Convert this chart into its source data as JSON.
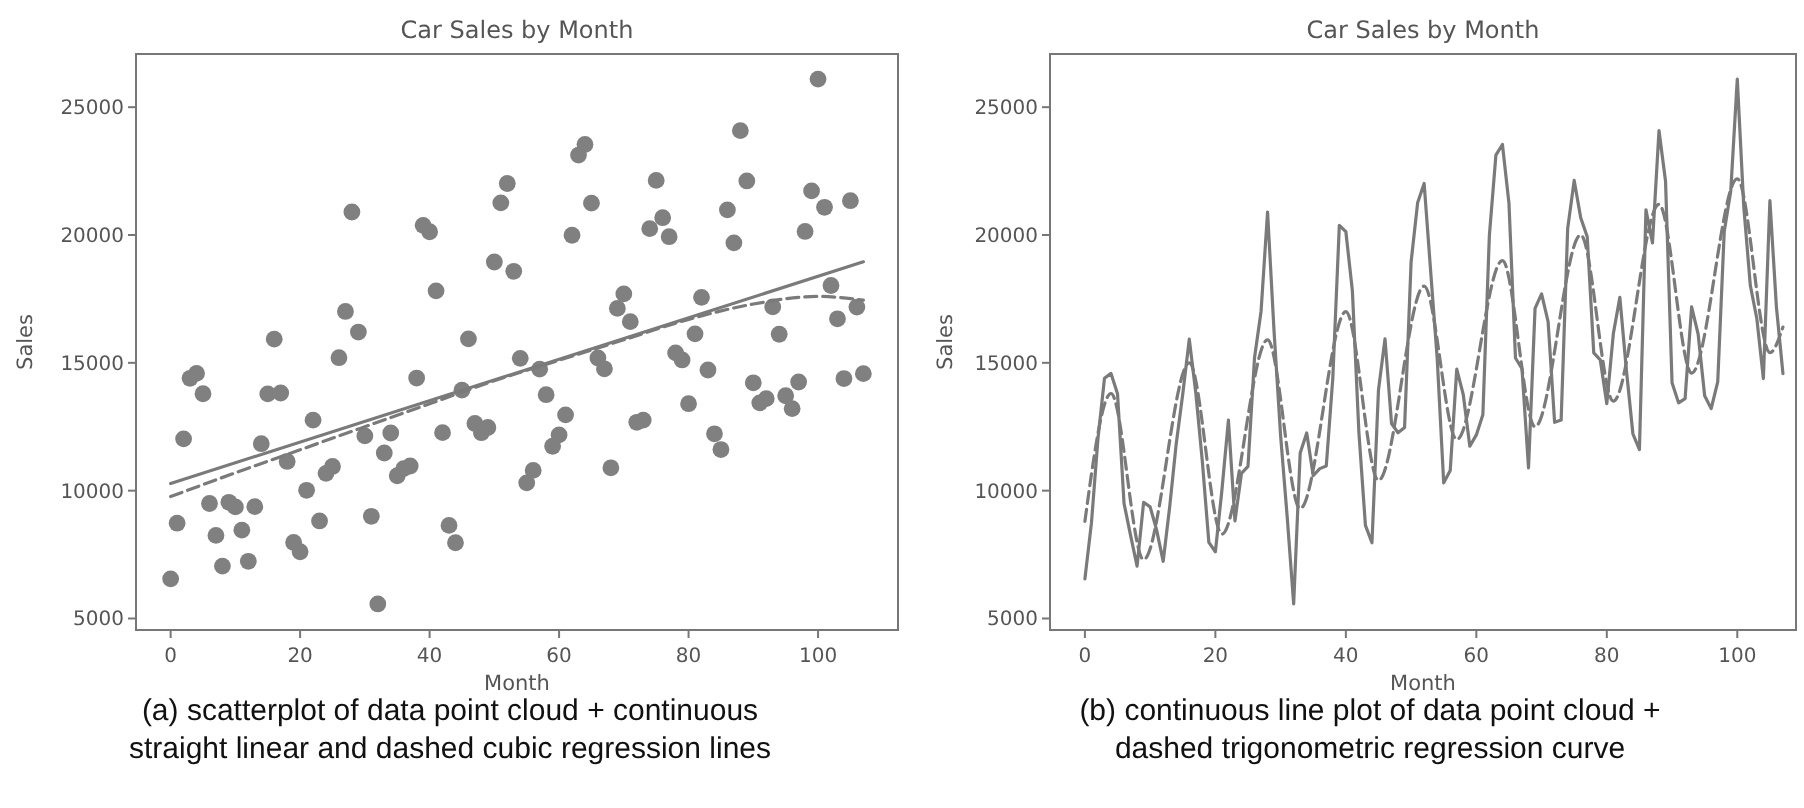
{
  "chart_data": [
    {
      "type": "scatter",
      "title": "Car Sales by Month",
      "xlabel": "Month",
      "ylabel": "Sales",
      "xlim": [
        -5.35,
        112.35
      ],
      "ylim": [
        4550,
        27080
      ],
      "xticks": [
        0,
        20,
        40,
        60,
        80,
        100
      ],
      "yticks": [
        5000,
        10000,
        15000,
        20000,
        25000
      ],
      "grid": false,
      "annotations": [
        "(a) scatterplot of data point cloud + continuous\nstraight linear and dashed cubic regression lines"
      ],
      "x": [
        0,
        1,
        2,
        3,
        4,
        5,
        6,
        7,
        8,
        9,
        10,
        11,
        12,
        13,
        14,
        15,
        16,
        17,
        18,
        19,
        20,
        21,
        22,
        23,
        24,
        25,
        26,
        27,
        28,
        29,
        30,
        31,
        32,
        33,
        34,
        35,
        36,
        37,
        38,
        39,
        40,
        41,
        42,
        43,
        44,
        45,
        46,
        47,
        48,
        49,
        50,
        51,
        52,
        53,
        54,
        55,
        56,
        57,
        58,
        59,
        60,
        61,
        62,
        63,
        64,
        65,
        66,
        67,
        68,
        69,
        70,
        71,
        72,
        73,
        74,
        75,
        76,
        77,
        78,
        79,
        80,
        81,
        82,
        83,
        84,
        85,
        86,
        87,
        88,
        89,
        90,
        91,
        92,
        93,
        94,
        95,
        96,
        97,
        98,
        99,
        100,
        101,
        102,
        103,
        104,
        105,
        106,
        107
      ],
      "series": [
        {
          "color": "#808080",
          "marker": "circle",
          "values": [
            6550,
            8728,
            12026,
            14395,
            14587,
            13791,
            9498,
            8251,
            7049,
            9545,
            9364,
            8456,
            7237,
            9374,
            11837,
            13784,
            15926,
            13821,
            11143,
            7975,
            7610,
            10015,
            12759,
            8816,
            10677,
            10947,
            15200,
            17010,
            20900,
            16205,
            12143,
            8997,
            5568,
            11474,
            12256,
            10583,
            10862,
            10965,
            14405,
            20379,
            20128,
            17816,
            12268,
            8642,
            7962,
            13932,
            15936,
            12628,
            12267,
            12470,
            18944,
            21259,
            22015,
            18581,
            15175,
            10306,
            10792,
            14752,
            13754,
            11738,
            12181,
            12965,
            19990,
            23125,
            23541,
            21247,
            15189,
            14767,
            10895,
            17130,
            17697,
            16611,
            12674,
            12760,
            20249,
            22135,
            20677,
            19933,
            15388,
            15113,
            13401,
            16135,
            17562,
            14720,
            12225,
            11608,
            20985,
            19692,
            24081,
            22114,
            14220,
            13434,
            13598,
            17187,
            16119,
            13713,
            13210,
            14251,
            20139,
            21725,
            26099,
            21084,
            18024,
            16722,
            14385,
            21342,
            17180,
            14577
          ]
        },
        {
          "type": "line",
          "color": "#7a7a7a",
          "line_style": "solid",
          "x": [
            0,
            107
          ],
          "values": [
            10280,
            18950
          ]
        },
        {
          "type": "line",
          "color": "#7a7a7a",
          "line_style": "dashed",
          "x": [
            0,
            10,
            20,
            30,
            40,
            50,
            60,
            70,
            80,
            90,
            100,
            107
          ],
          "values": [
            9770,
            10700,
            11600,
            12500,
            13400,
            14300,
            15100,
            15900,
            16700,
            17300,
            17600,
            17450
          ]
        }
      ]
    },
    {
      "type": "line",
      "title": "Car Sales by Month",
      "xlabel": "Month",
      "ylabel": "Sales",
      "xlim": [
        -5.35,
        109
      ],
      "ylim": [
        4550,
        27080
      ],
      "xticks": [
        0,
        20,
        40,
        60,
        80,
        100
      ],
      "yticks": [
        5000,
        10000,
        15000,
        20000,
        25000
      ],
      "grid": false,
      "annotations": [
        "(b) continuous line plot of data point cloud +\ndashed trigonometric regression curve"
      ],
      "x": [
        0,
        1,
        2,
        3,
        4,
        5,
        6,
        7,
        8,
        9,
        10,
        11,
        12,
        13,
        14,
        15,
        16,
        17,
        18,
        19,
        20,
        21,
        22,
        23,
        24,
        25,
        26,
        27,
        28,
        29,
        30,
        31,
        32,
        33,
        34,
        35,
        36,
        37,
        38,
        39,
        40,
        41,
        42,
        43,
        44,
        45,
        46,
        47,
        48,
        49,
        50,
        51,
        52,
        53,
        54,
        55,
        56,
        57,
        58,
        59,
        60,
        61,
        62,
        63,
        64,
        65,
        66,
        67,
        68,
        69,
        70,
        71,
        72,
        73,
        74,
        75,
        76,
        77,
        78,
        79,
        80,
        81,
        82,
        83,
        84,
        85,
        86,
        87,
        88,
        89,
        90,
        91,
        92,
        93,
        94,
        95,
        96,
        97,
        98,
        99,
        100,
        101,
        102,
        103,
        104,
        105,
        106,
        107
      ],
      "series": [
        {
          "color": "#7a7a7a",
          "line_style": "solid",
          "values": [
            6550,
            8728,
            12026,
            14395,
            14587,
            13791,
            9498,
            8251,
            7049,
            9545,
            9364,
            8456,
            7237,
            9374,
            11837,
            13784,
            15926,
            13821,
            11143,
            7975,
            7610,
            10015,
            12759,
            8816,
            10677,
            10947,
            15200,
            17010,
            20900,
            16205,
            12143,
            8997,
            5568,
            11474,
            12256,
            10583,
            10862,
            10965,
            14405,
            20379,
            20128,
            17816,
            12268,
            8642,
            7962,
            13932,
            15936,
            12628,
            12267,
            12470,
            18944,
            21259,
            22015,
            18581,
            15175,
            10306,
            10792,
            14752,
            13754,
            11738,
            12181,
            12965,
            19990,
            23125,
            23541,
            21247,
            15189,
            14767,
            10895,
            17130,
            17697,
            16611,
            12674,
            12760,
            20249,
            22135,
            20677,
            19933,
            15388,
            15113,
            13401,
            16135,
            17562,
            14720,
            12225,
            11608,
            20985,
            19692,
            24081,
            22114,
            14220,
            13434,
            13598,
            17187,
            16119,
            13713,
            13210,
            14251,
            20139,
            21725,
            26099,
            21084,
            18024,
            16722,
            14385,
            21342,
            17180,
            14577
          ]
        },
        {
          "color": "#7a7a7a",
          "line_style": "dashed",
          "x": [
            0,
            4,
            9,
            16,
            21,
            28,
            33,
            40,
            45,
            52,
            57,
            64,
            69,
            76,
            81,
            88,
            93,
            100,
            105,
            107
          ],
          "values": [
            8800,
            13800,
            7300,
            15000,
            8300,
            15900,
            9300,
            17000,
            10400,
            18000,
            12000,
            19000,
            12500,
            20000,
            13500,
            21200,
            14600,
            22200,
            15400,
            16400
          ]
        }
      ]
    }
  ]
}
